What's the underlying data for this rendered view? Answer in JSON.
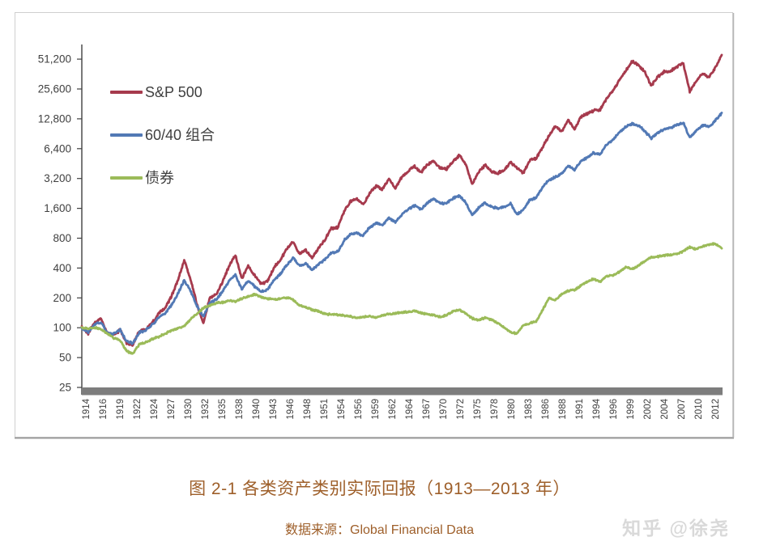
{
  "figure": {
    "caption": "图 2-1 各类资产类别实际回报（1913—2013 年）",
    "source": "数据来源：Global Financial Data",
    "watermark": "知乎 @徐尧",
    "caption_color": "#9E5F2A",
    "source_color": "#9E5F2A",
    "watermark_color": "#D9D9D9"
  },
  "chart_data": {
    "type": "line",
    "title": "",
    "xlabel": "",
    "ylabel": "",
    "y_scale": "log2",
    "grid": false,
    "legend_position": "top-left",
    "axis_color": "#404040",
    "x_axis_bar_color": "#7D7D7D",
    "x_start_year": 1913,
    "x_end_year": 2013,
    "ylim": [
      25,
      51200
    ],
    "y_ticks": [
      25,
      50,
      100,
      200,
      400,
      800,
      1600,
      3200,
      6400,
      12800,
      25600,
      51200
    ],
    "y_tick_labels": [
      "25",
      "50",
      "100",
      "200",
      "400",
      "800",
      "1,600",
      "3,200",
      "6,400",
      "12,800",
      "25,600",
      "51,200"
    ],
    "x_tick_years": [
      1914,
      1916,
      1919,
      1922,
      1924,
      1927,
      1930,
      1932,
      1935,
      1938,
      1940,
      1943,
      1946,
      1948,
      1951,
      1954,
      1956,
      1959,
      1962,
      1964,
      1967,
      1970,
      1972,
      1975,
      1978,
      1980,
      1983,
      1986,
      1988,
      1991,
      1994,
      1996,
      1999,
      2002,
      2004,
      2007,
      2010,
      2012
    ],
    "series": [
      {
        "name": "S&P 500",
        "color": "#A63A4D",
        "values": [
          100,
          88,
          112,
          122,
          88,
          85,
          95,
          70,
          68,
          92,
          96,
          112,
          140,
          158,
          205,
          300,
          480,
          310,
          170,
          112,
          200,
          215,
          290,
          420,
          540,
          310,
          420,
          340,
          280,
          290,
          400,
          480,
          620,
          740,
          560,
          610,
          500,
          640,
          780,
          1000,
          1030,
          1500,
          1880,
          1980,
          1750,
          2300,
          2700,
          2500,
          3150,
          2550,
          3300,
          3800,
          4250,
          3700,
          4400,
          4800,
          4100,
          4000,
          4700,
          5500,
          4400,
          2800,
          3700,
          4350,
          3800,
          3600,
          3900,
          4700,
          4100,
          3600,
          4900,
          5100,
          6600,
          8600,
          10800,
          9500,
          12500,
          10000,
          13500,
          14300,
          15500,
          15800,
          20500,
          24500,
          31500,
          39000,
          48500,
          44500,
          37500,
          27500,
          34000,
          38000,
          38500,
          43000,
          46500,
          24000,
          30500,
          36500,
          33500,
          42000,
          56500
        ]
      },
      {
        "name": "60/40 组合",
        "color": "#5279B5",
        "values": [
          100,
          90,
          108,
          114,
          89,
          87,
          95,
          73,
          70,
          90,
          94,
          107,
          126,
          140,
          168,
          220,
          300,
          235,
          165,
          130,
          178,
          192,
          232,
          295,
          340,
          245,
          300,
          262,
          230,
          240,
          300,
          345,
          430,
          505,
          425,
          440,
          385,
          440,
          490,
          570,
          585,
          760,
          880,
          905,
          845,
          1030,
          1140,
          1090,
          1290,
          1160,
          1390,
          1560,
          1710,
          1560,
          1810,
          2010,
          1790,
          1810,
          2010,
          2150,
          1820,
          1360,
          1620,
          1820,
          1660,
          1600,
          1650,
          1780,
          1400,
          1550,
          1950,
          2050,
          2600,
          3100,
          3300,
          3600,
          4300,
          3900,
          4800,
          5200,
          5800,
          5650,
          7000,
          7900,
          9400,
          10600,
          11400,
          10900,
          9600,
          8100,
          9300,
          10000,
          10300,
          11100,
          11700,
          8300,
          9600,
          11100,
          10500,
          12300,
          14700
        ]
      },
      {
        "name": "债券",
        "color": "#9BBB59",
        "values": [
          100,
          98,
          100,
          97,
          87,
          79,
          74,
          58,
          55,
          68,
          71,
          77,
          81,
          87,
          94,
          99,
          104,
          122,
          138,
          158,
          168,
          177,
          181,
          188,
          184,
          197,
          208,
          218,
          204,
          196,
          194,
          196,
          202,
          192,
          168,
          161,
          152,
          146,
          138,
          136,
          135,
          133,
          130,
          126,
          128,
          130,
          127,
          134,
          137,
          140,
          142,
          145,
          147,
          141,
          137,
          134,
          128,
          134,
          146,
          151,
          140,
          124,
          119,
          126,
          121,
          111,
          100,
          90,
          87,
          106,
          111,
          116,
          150,
          200,
          190,
          218,
          235,
          241,
          266,
          291,
          312,
          291,
          331,
          336,
          366,
          411,
          391,
          422,
          471,
          512,
          521,
          536,
          546,
          556,
          591,
          651,
          621,
          661,
          691,
          701,
          631
        ]
      }
    ]
  }
}
